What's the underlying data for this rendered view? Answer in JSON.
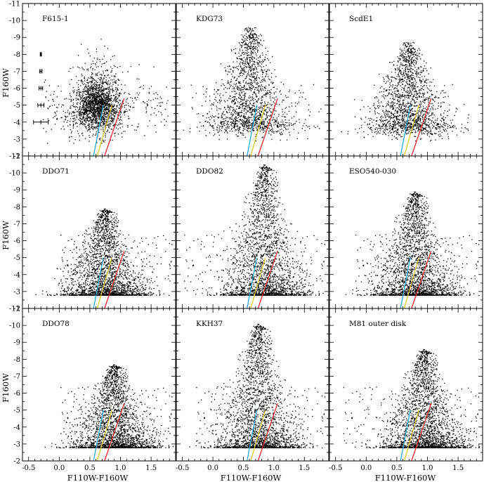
{
  "figure": {
    "xlabel": "F110W-F160W",
    "ylabel": "F160W",
    "xlim": [
      -0.6,
      1.9
    ],
    "ylim": [
      -2,
      -11
    ],
    "xticks": [
      "-0.5",
      "0.0",
      "0.5",
      "1.0",
      "1.5"
    ],
    "xtick_values": [
      -0.5,
      0.0,
      0.5,
      1.0,
      1.5
    ],
    "yticks": [
      "-2",
      "-3",
      "-4",
      "-5",
      "-6",
      "-7",
      "-8",
      "-9",
      "-10",
      "-11"
    ],
    "ytick_values": [
      -2,
      -3,
      -4,
      -5,
      -6,
      -7,
      -8,
      -9,
      -10,
      -11
    ],
    "colors": {
      "points": "#000000",
      "blue_line": "#29a9d9",
      "yellow_line": "#d8cc2a",
      "red_line": "#e8262b"
    }
  },
  "chart_data": [
    {
      "type": "scatter",
      "name": "F615-1",
      "dense": false,
      "shape": "broad",
      "tip": [
        0.66,
        -8.8
      ],
      "base": [
        -0.3,
        1.8
      ],
      "peak": -5.0,
      "error_bars": [
        {
          "mag": -4.0,
          "color_err": 0.12
        },
        {
          "mag": -5.0,
          "color_err": 0.05
        },
        {
          "mag": -6.0,
          "color_err": 0.03
        },
        {
          "mag": -7.0,
          "color_err": 0.02
        },
        {
          "mag": -8.0,
          "color_err": 0.01
        }
      ]
    },
    {
      "type": "scatter",
      "name": "KDG73",
      "dense": false,
      "shape": "tri",
      "tip": [
        0.62,
        -9.4
      ],
      "base": [
        -0.4,
        1.8
      ],
      "peak": -3.7
    },
    {
      "type": "scatter",
      "name": "ScdE1",
      "dense": false,
      "shape": "tri",
      "tip": [
        0.7,
        -8.5
      ],
      "base": [
        0.1,
        1.5
      ],
      "peak": -3.6
    },
    {
      "type": "scatter",
      "name": "DDO71",
      "dense": true,
      "shape": "tri",
      "tip": [
        0.75,
        -7.9
      ],
      "base": [
        0.0,
        1.85
      ],
      "peak": -3.0
    },
    {
      "type": "scatter",
      "name": "DDO82",
      "dense": true,
      "shape": "tri",
      "tip": [
        0.85,
        -10.5
      ],
      "base": [
        -0.5,
        1.85
      ],
      "peak": -3.0
    },
    {
      "type": "scatter",
      "name": "ESO540-030",
      "dense": true,
      "shape": "tri",
      "tip": [
        0.8,
        -8.9
      ],
      "base": [
        -0.2,
        1.85
      ],
      "peak": -3.0
    },
    {
      "type": "scatter",
      "name": "DDO78",
      "dense": true,
      "shape": "tri",
      "tip": [
        0.9,
        -7.7
      ],
      "base": [
        0.0,
        1.85
      ],
      "peak": -3.0
    },
    {
      "type": "scatter",
      "name": "KKH37",
      "dense": true,
      "shape": "tri",
      "tip": [
        0.75,
        -10.1
      ],
      "base": [
        -0.3,
        1.85
      ],
      "peak": -3.0
    },
    {
      "type": "scatter",
      "name": "M81 outer disk",
      "dense": true,
      "shape": "tri",
      "tip": [
        0.95,
        -8.6
      ],
      "base": [
        -0.4,
        1.85
      ],
      "peak": -3.0
    }
  ],
  "fiducial_lines": [
    {
      "color": "blue",
      "points": [
        [
          0.56,
          -2.0
        ],
        [
          0.72,
          -5.0
        ]
      ]
    },
    {
      "color": "yellow",
      "points": [
        [
          0.62,
          -2.0
        ],
        [
          0.86,
          -5.0
        ]
      ]
    },
    {
      "color": "red",
      "points": [
        [
          0.74,
          -2.0
        ],
        [
          1.06,
          -5.4
        ]
      ]
    }
  ]
}
